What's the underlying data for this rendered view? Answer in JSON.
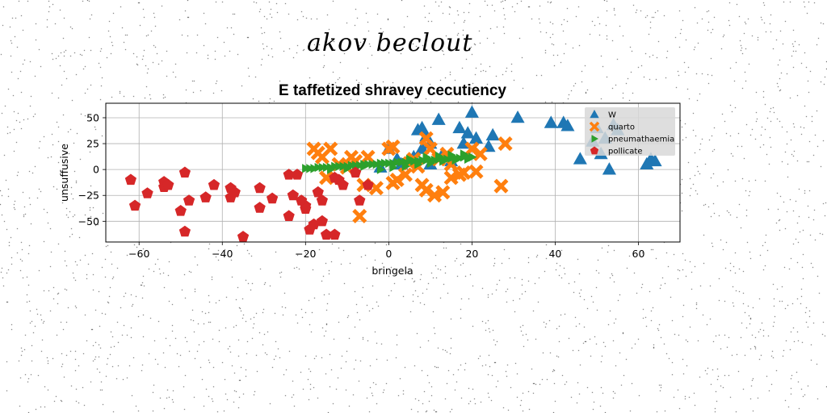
{
  "figure": {
    "suptitle": "akov beclout"
  },
  "chart_data": {
    "type": "scatter",
    "title": "E taffetized shravey cecutiency",
    "xlabel": "bringela",
    "ylabel": "unsuffusive",
    "xlim": [
      -68,
      70
    ],
    "ylim": [
      -70,
      64
    ],
    "xticks": [
      -60,
      -40,
      -20,
      0,
      20,
      40,
      60
    ],
    "yticks": [
      50,
      25,
      0,
      -25,
      -50
    ],
    "grid": true,
    "legend_position": "top-right",
    "series": [
      {
        "name": "W",
        "marker": "triangle",
        "color": "#1f77b4",
        "points": [
          [
            -2,
            2
          ],
          [
            0,
            20
          ],
          [
            2,
            10
          ],
          [
            3,
            5
          ],
          [
            6,
            12
          ],
          [
            7,
            38
          ],
          [
            8,
            20
          ],
          [
            8,
            40
          ],
          [
            9,
            32
          ],
          [
            10,
            25
          ],
          [
            10,
            5
          ],
          [
            12,
            48
          ],
          [
            13,
            15
          ],
          [
            15,
            8
          ],
          [
            17,
            40
          ],
          [
            18,
            25
          ],
          [
            19,
            35
          ],
          [
            20,
            55
          ],
          [
            21,
            30
          ],
          [
            24,
            22
          ],
          [
            25,
            33
          ],
          [
            31,
            50
          ],
          [
            39,
            45
          ],
          [
            42,
            45
          ],
          [
            43,
            42
          ],
          [
            46,
            10
          ],
          [
            49,
            27
          ],
          [
            50,
            40
          ],
          [
            51,
            15
          ],
          [
            52,
            30
          ],
          [
            53,
            0
          ],
          [
            54,
            43
          ],
          [
            55,
            38
          ],
          [
            62,
            5
          ],
          [
            63,
            10
          ],
          [
            64,
            8
          ]
        ]
      },
      {
        "name": "quarto",
        "marker": "x",
        "color": "#ff7f0e",
        "points": [
          [
            -18,
            20
          ],
          [
            -17,
            16
          ],
          [
            -16,
            12
          ],
          [
            -15,
            -8
          ],
          [
            -14,
            20
          ],
          [
            -12,
            5
          ],
          [
            -10,
            2
          ],
          [
            -9,
            12
          ],
          [
            -8,
            8
          ],
          [
            -6,
            -15
          ],
          [
            -5,
            12
          ],
          [
            -3,
            -18
          ],
          [
            -7,
            -45
          ],
          [
            0,
            20
          ],
          [
            1,
            22
          ],
          [
            1,
            -13
          ],
          [
            2,
            -10
          ],
          [
            4,
            -5
          ],
          [
            5,
            6
          ],
          [
            6,
            10
          ],
          [
            7,
            3
          ],
          [
            8,
            -15
          ],
          [
            9,
            -20
          ],
          [
            9,
            30
          ],
          [
            10,
            20
          ],
          [
            11,
            -25
          ],
          [
            12,
            10
          ],
          [
            13,
            -22
          ],
          [
            14,
            15
          ],
          [
            15,
            5
          ],
          [
            15,
            -8
          ],
          [
            17,
            -5
          ],
          [
            18,
            -3
          ],
          [
            20,
            20
          ],
          [
            21,
            -2
          ],
          [
            22,
            15
          ],
          [
            27,
            -16
          ],
          [
            28,
            25
          ]
        ]
      },
      {
        "name": "pneumathaemia",
        "marker": "triangle-right",
        "color": "#2ca02c",
        "points": [
          [
            -20,
            1
          ],
          [
            -19,
            1
          ],
          [
            -18,
            1
          ],
          [
            -17,
            2
          ],
          [
            -16,
            2
          ],
          [
            -15,
            2
          ],
          [
            -14,
            2
          ],
          [
            -13,
            3
          ],
          [
            -12,
            3
          ],
          [
            -11,
            3
          ],
          [
            -10,
            3
          ],
          [
            -9,
            4
          ],
          [
            -8,
            4
          ],
          [
            -7,
            4
          ],
          [
            -6,
            5
          ],
          [
            -5,
            5
          ],
          [
            -4,
            5
          ],
          [
            -3,
            5
          ],
          [
            -2,
            6
          ],
          [
            -1,
            6
          ],
          [
            0,
            6
          ],
          [
            1,
            6
          ],
          [
            2,
            7
          ],
          [
            3,
            7
          ],
          [
            4,
            7
          ],
          [
            5,
            8
          ],
          [
            6,
            8
          ],
          [
            7,
            8
          ],
          [
            8,
            9
          ],
          [
            9,
            9
          ],
          [
            10,
            9
          ],
          [
            11,
            9
          ],
          [
            12,
            10
          ],
          [
            13,
            10
          ],
          [
            14,
            10
          ],
          [
            15,
            11
          ],
          [
            16,
            11
          ],
          [
            17,
            11
          ],
          [
            18,
            12
          ],
          [
            19,
            12
          ],
          [
            20,
            12
          ],
          [
            -2,
            0
          ],
          [
            1,
            2
          ],
          [
            4,
            3
          ],
          [
            7,
            5
          ],
          [
            10,
            6
          ],
          [
            13,
            8
          ],
          [
            16,
            9
          ],
          [
            19,
            10
          ],
          [
            -6,
            3
          ],
          [
            -10,
            1
          ],
          [
            -14,
            0
          ],
          [
            5,
            10
          ],
          [
            9,
            12
          ],
          [
            12,
            13
          ],
          [
            15,
            14
          ],
          [
            18,
            15
          ]
        ]
      },
      {
        "name": "pollicate",
        "marker": "pentagon",
        "color": "#d62728",
        "points": [
          [
            -62,
            -10
          ],
          [
            -61,
            -35
          ],
          [
            -58,
            -23
          ],
          [
            -54,
            -12
          ],
          [
            -54,
            -17
          ],
          [
            -53,
            -15
          ],
          [
            -50,
            -40
          ],
          [
            -49,
            -3
          ],
          [
            -49,
            -60
          ],
          [
            -48,
            -30
          ],
          [
            -44,
            -27
          ],
          [
            -42,
            -15
          ],
          [
            -38,
            -18
          ],
          [
            -38,
            -27
          ],
          [
            -37,
            -22
          ],
          [
            -35,
            -65
          ],
          [
            -31,
            -18
          ],
          [
            -31,
            -37
          ],
          [
            -28,
            -28
          ],
          [
            -24,
            -5
          ],
          [
            -24,
            -45
          ],
          [
            -23,
            -25
          ],
          [
            -22,
            -5
          ],
          [
            -21,
            -30
          ],
          [
            -20,
            -35
          ],
          [
            -20,
            -38
          ],
          [
            -19,
            -58
          ],
          [
            -18,
            -53
          ],
          [
            -17,
            -22
          ],
          [
            -16,
            -30
          ],
          [
            -16,
            -50
          ],
          [
            -15,
            -63
          ],
          [
            -13,
            -63
          ],
          [
            -13,
            -8
          ],
          [
            -12,
            -10
          ],
          [
            -11,
            -15
          ],
          [
            -8,
            -3
          ],
          [
            -7,
            -30
          ],
          [
            -5,
            -15
          ]
        ]
      }
    ]
  }
}
